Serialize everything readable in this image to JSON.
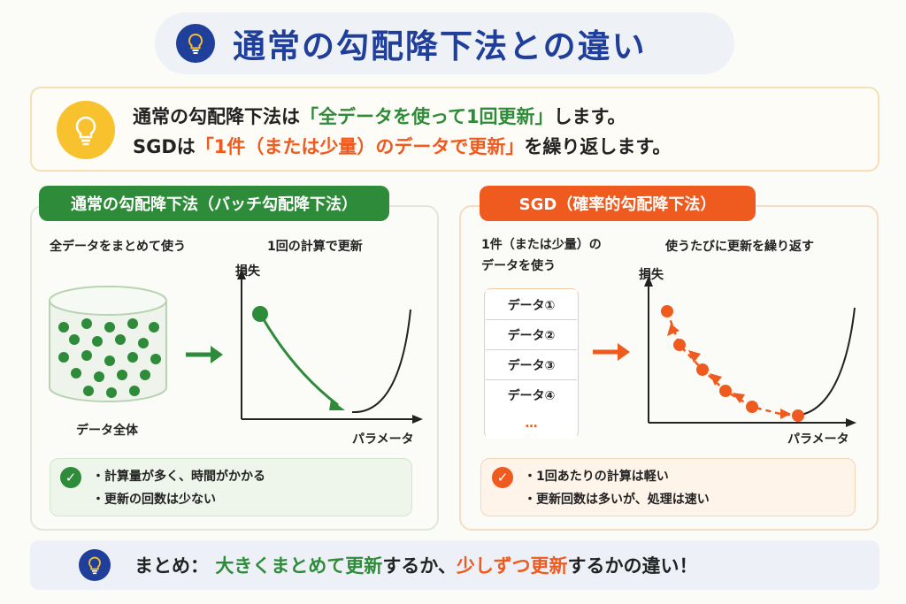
{
  "title": "通常の勾配降下法との違い",
  "intro": {
    "line1_prefix": "通常の勾配降下法は",
    "line1_highlight": "「全データを使って1回更新」",
    "line1_suffix": "します。",
    "line2_prefix": "SGDは",
    "line2_highlight": "「1件（または少量）のデータで更新」",
    "line2_suffix": "を繰り返します。"
  },
  "batch": {
    "tab_label": "通常の勾配降下法（バッチ勾配降下法）",
    "caption_left": "全データをまとめて使う",
    "caption_right": "1回の計算で更新",
    "cylinder_label": "データ全体",
    "y_axis": "損失",
    "x_axis": "パラメータ",
    "notes": [
      "・計算量が多く、時間がかかる",
      "・更新の回数は少ない"
    ]
  },
  "sgd": {
    "tab_label": "SGD（確率的勾配降下法）",
    "caption_left_1": "1件（または少量）の",
    "caption_left_2": "データを使う",
    "caption_right": "使うたびに更新を繰り返す",
    "data_items": [
      "データ①",
      "データ②",
      "データ③",
      "データ④",
      "…"
    ],
    "y_axis": "損失",
    "x_axis": "パラメータ",
    "notes": [
      "・1回あたりの計算は軽い",
      "・更新回数は多いが、処理は速い"
    ]
  },
  "summary": {
    "prefix": "まとめ：",
    "highlight1": "大きくまとめて更新",
    "mid": "するか、",
    "highlight2": "少しずつ更新",
    "suffix": "するかの違い！"
  },
  "colors": {
    "navy": "#1f3f9a",
    "green": "#2e8b3a",
    "orange": "#ef5a1f",
    "yellow": "#f8c22e"
  }
}
